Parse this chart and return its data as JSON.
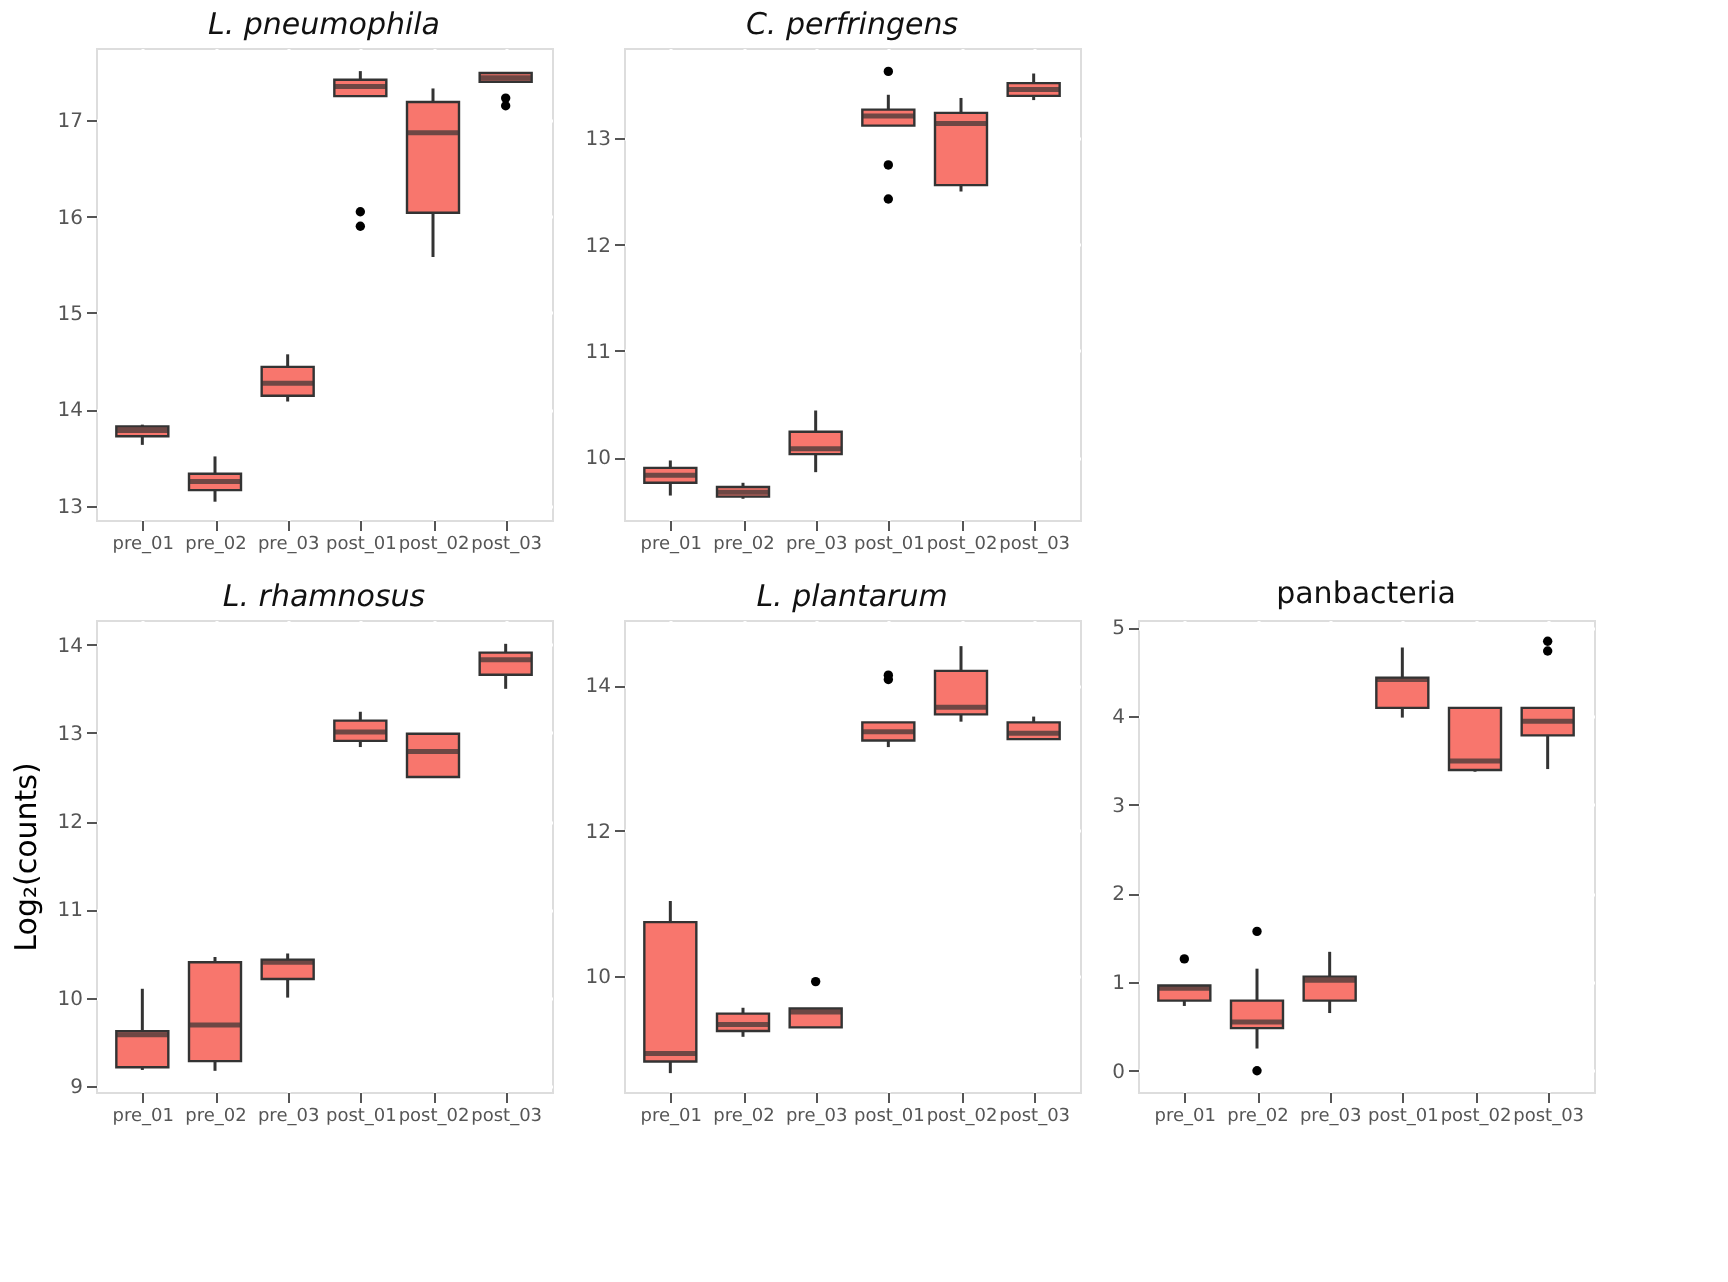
{
  "chart_data": [
    {
      "type": "box",
      "title": "L. pneumophila",
      "categories": [
        "pre_01",
        "pre_02",
        "pre_03",
        "post_01",
        "post_02",
        "post_03"
      ],
      "color": "#f8766d",
      "ylim": [
        12.85,
        17.75
      ],
      "yticks": [
        13,
        14,
        15,
        16,
        17
      ],
      "grid": true,
      "boxes": [
        {
          "low": 13.63,
          "q1": 13.72,
          "median": 13.78,
          "q3": 13.82,
          "high": 13.84
        },
        {
          "low": 13.04,
          "q1": 13.16,
          "median": 13.25,
          "q3": 13.33,
          "high": 13.51
        },
        {
          "low": 14.08,
          "q1": 14.14,
          "median": 14.27,
          "q3": 14.44,
          "high": 14.57
        },
        {
          "low": 17.25,
          "q1": 17.25,
          "median": 17.35,
          "q3": 17.42,
          "high": 17.51,
          "outliers": [
            16.05,
            15.9
          ]
        },
        {
          "low": 15.58,
          "q1": 16.04,
          "median": 16.87,
          "q3": 17.19,
          "high": 17.33
        },
        {
          "low": 17.4,
          "q1": 17.4,
          "median": 17.44,
          "q3": 17.49,
          "high": 17.5,
          "outliers": [
            17.23,
            17.15
          ]
        }
      ]
    },
    {
      "type": "box",
      "title": "C. perfringens",
      "categories": [
        "pre_01",
        "pre_02",
        "pre_03",
        "post_01",
        "post_02",
        "post_03"
      ],
      "color": "#f8766d",
      "ylim": [
        9.41,
        13.85
      ],
      "yticks": [
        10,
        11,
        12,
        13
      ],
      "grid": true,
      "boxes": [
        {
          "low": 9.64,
          "q1": 9.76,
          "median": 9.83,
          "q3": 9.9,
          "high": 9.97
        },
        {
          "low": 9.61,
          "q1": 9.63,
          "median": 9.67,
          "q3": 9.72,
          "high": 9.76
        },
        {
          "low": 9.86,
          "q1": 10.03,
          "median": 10.08,
          "q3": 10.24,
          "high": 10.44
        },
        {
          "low": 13.12,
          "q1": 13.12,
          "median": 13.21,
          "q3": 13.27,
          "high": 13.41,
          "outliers": [
            13.63,
            12.75,
            12.43
          ]
        },
        {
          "low": 12.5,
          "q1": 12.56,
          "median": 13.14,
          "q3": 13.24,
          "high": 13.38
        },
        {
          "low": 13.36,
          "q1": 13.4,
          "median": 13.46,
          "q3": 13.52,
          "high": 13.61
        }
      ]
    },
    {
      "type": "box",
      "title": "L. rhamnosus",
      "ylabel": "Log₂(counts)",
      "categories": [
        "pre_01",
        "pre_02",
        "pre_03",
        "post_01",
        "post_02",
        "post_03"
      ],
      "color": "#f8766d",
      "ylim": [
        8.93,
        14.28
      ],
      "yticks": [
        9,
        10,
        11,
        12,
        13,
        14
      ],
      "grid": true,
      "boxes": [
        {
          "low": 9.18,
          "q1": 9.21,
          "median": 9.58,
          "q3": 9.62,
          "high": 10.1
        },
        {
          "low": 9.17,
          "q1": 9.28,
          "median": 9.69,
          "q3": 10.4,
          "high": 10.46
        },
        {
          "low": 10.0,
          "q1": 10.21,
          "median": 10.4,
          "q3": 10.43,
          "high": 10.5
        },
        {
          "low": 12.84,
          "q1": 12.91,
          "median": 13.01,
          "q3": 13.14,
          "high": 13.24
        },
        {
          "low": 12.5,
          "q1": 12.5,
          "median": 12.79,
          "q3": 12.99,
          "high": 12.99
        },
        {
          "low": 13.5,
          "q1": 13.66,
          "median": 13.83,
          "q3": 13.91,
          "high": 14.01
        }
      ]
    },
    {
      "type": "box",
      "title": "L. plantarum",
      "categories": [
        "pre_01",
        "pre_02",
        "pre_03",
        "post_01",
        "post_02",
        "post_03"
      ],
      "color": "#f8766d",
      "ylim": [
        8.4,
        14.9
      ],
      "yticks": [
        10,
        12,
        14
      ],
      "grid": true,
      "boxes": [
        {
          "low": 8.66,
          "q1": 8.82,
          "median": 8.93,
          "q3": 10.74,
          "high": 11.03
        },
        {
          "low": 9.16,
          "q1": 9.24,
          "median": 9.33,
          "q3": 9.48,
          "high": 9.56
        },
        {
          "low": 9.29,
          "q1": 9.29,
          "median": 9.5,
          "q3": 9.55,
          "high": 9.55,
          "outliers": [
            9.92
          ]
        },
        {
          "low": 13.15,
          "q1": 13.24,
          "median": 13.36,
          "q3": 13.49,
          "high": 13.49,
          "outliers": [
            14.14,
            14.08
          ]
        },
        {
          "low": 13.5,
          "q1": 13.6,
          "median": 13.7,
          "q3": 14.2,
          "high": 14.54
        },
        {
          "low": 13.26,
          "q1": 13.26,
          "median": 13.34,
          "q3": 13.49,
          "high": 13.57
        }
      ]
    },
    {
      "type": "box",
      "title": "panbacteria",
      "categories": [
        "pre_01",
        "pre_02",
        "pre_03",
        "post_01",
        "post_02",
        "post_03"
      ],
      "color": "#f8766d",
      "ylim": [
        -0.24,
        5.08
      ],
      "yticks": [
        0,
        1,
        2,
        3,
        4,
        5
      ],
      "grid": true,
      "boxes": [
        {
          "low": 0.73,
          "q1": 0.79,
          "median": 0.93,
          "q3": 0.96,
          "high": 0.96,
          "outliers": [
            1.26
          ]
        },
        {
          "low": 0.25,
          "q1": 0.48,
          "median": 0.55,
          "q3": 0.79,
          "high": 1.15,
          "outliers": [
            1.57,
            0.0
          ]
        },
        {
          "low": 0.65,
          "q1": 0.79,
          "median": 1.02,
          "q3": 1.06,
          "high": 1.34
        },
        {
          "low": 3.98,
          "q1": 4.09,
          "median": 4.41,
          "q3": 4.43,
          "high": 4.77
        },
        {
          "low": 3.37,
          "q1": 3.39,
          "median": 3.49,
          "q3": 4.09,
          "high": 4.09
        },
        {
          "low": 3.4,
          "q1": 3.78,
          "median": 3.94,
          "q3": 4.09,
          "high": 4.09,
          "outliers": [
            4.84,
            4.73
          ]
        }
      ]
    }
  ]
}
